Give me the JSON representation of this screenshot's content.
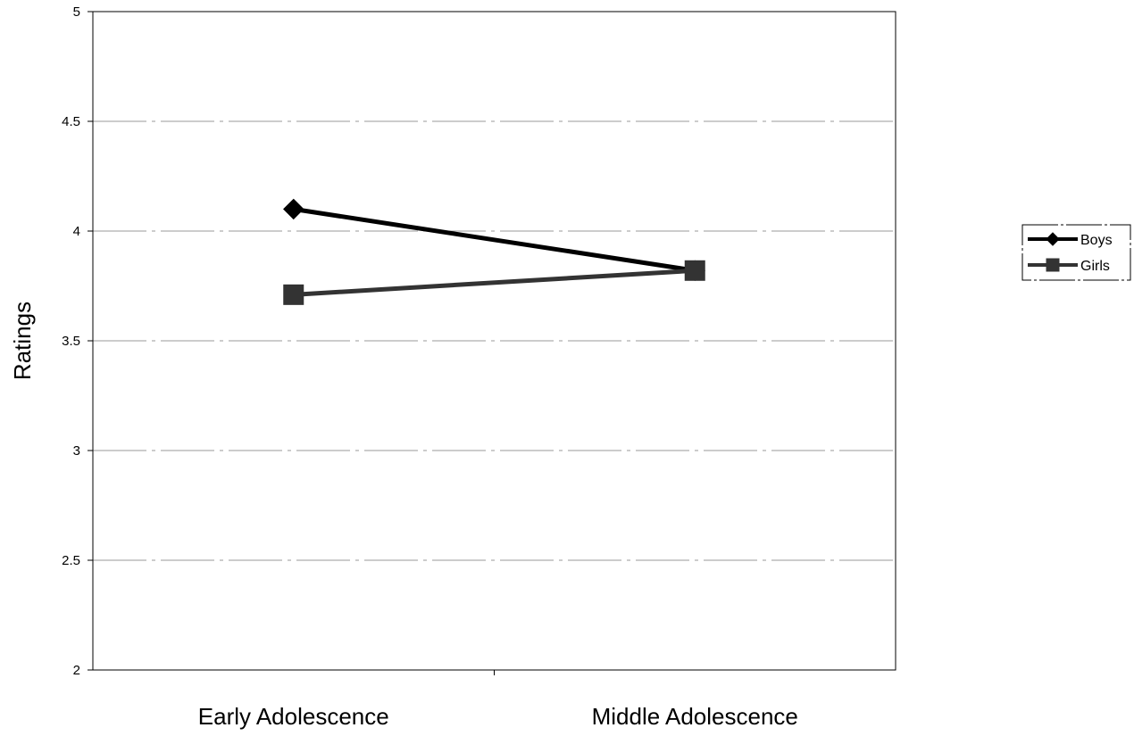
{
  "chart_data": {
    "type": "line",
    "categories": [
      "Early Adolescence",
      "Middle Adolescence"
    ],
    "series": [
      {
        "name": "Boys",
        "values": [
          4.1,
          3.82
        ],
        "marker": "diamond",
        "color": "#000000"
      },
      {
        "name": "Girls",
        "values": [
          3.71,
          3.82
        ],
        "marker": "square",
        "color": "#333333"
      }
    ],
    "title": "",
    "xlabel": "",
    "ylabel": "Ratings",
    "ylim": [
      2,
      5
    ],
    "yticks": [
      2,
      2.5,
      3,
      3.5,
      4,
      4.5,
      5
    ],
    "ytick_labels": [
      "2",
      "2.5",
      "3",
      "3.5",
      "4",
      "4.5",
      "5"
    ],
    "grid": true,
    "legend_position": "right"
  }
}
